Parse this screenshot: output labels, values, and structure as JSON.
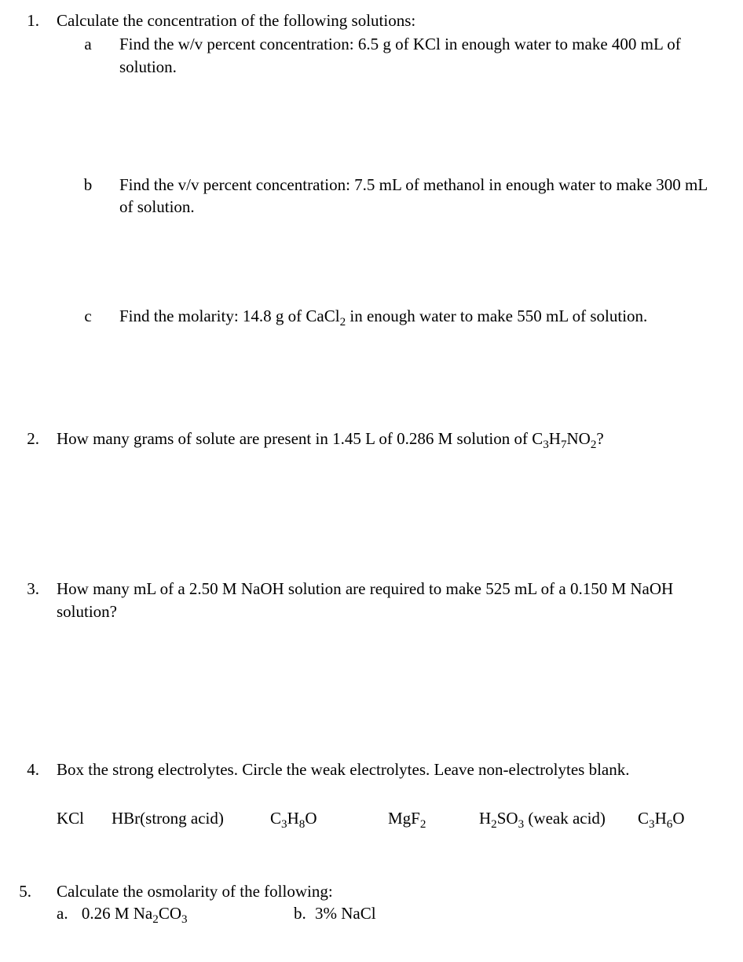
{
  "q1": {
    "number": "1.",
    "stem": "Calculate the concentration of the following solutions:",
    "a": {
      "label": "a",
      "text": "Find the w/v percent concentration: 6.5 g of KCl in enough water to make 400 mL of solution."
    },
    "b": {
      "label": "b",
      "text": "Find the v/v percent concentration: 7.5 mL of methanol in enough water to make 300 mL of solution."
    },
    "c": {
      "label": "c",
      "text_html": "Find the molarity: 14.8 g of CaCl<sub>2</sub> in enough water to make 550 mL of solution."
    }
  },
  "q2": {
    "number": "2.",
    "text_html": "How many grams of solute are present in 1.45 L of 0.286 M solution of C<sub>3</sub>H<sub>7</sub>NO<sub>2</sub>?"
  },
  "q3": {
    "number": "3.",
    "text": "How many mL of a 2.50 M NaOH solution are required to make 525 mL of a 0.150 M NaOH solution?"
  },
  "q4": {
    "number": "4.",
    "stem": "Box the strong electrolytes. Circle the weak electrolytes. Leave non-electrolytes blank.",
    "opts": {
      "o1": "KCl",
      "o2": "HBr(strong acid)",
      "o3_html": "C<sub>3</sub>H<sub>8</sub>O",
      "o4_html": "MgF<sub>2</sub>",
      "o5_html": "H<sub>2</sub>SO<sub>3</sub> (weak acid)",
      "o6_html": "C<sub>3</sub>H<sub>6</sub>O"
    }
  },
  "q5": {
    "number": "5.",
    "stem": "Calculate the osmolarity of the following:",
    "a": {
      "label": "a.",
      "text_html": "0.26 M Na<sub>2</sub>CO<sub>3</sub>"
    },
    "b": {
      "label": "b.",
      "text": "3% NaCl"
    }
  }
}
